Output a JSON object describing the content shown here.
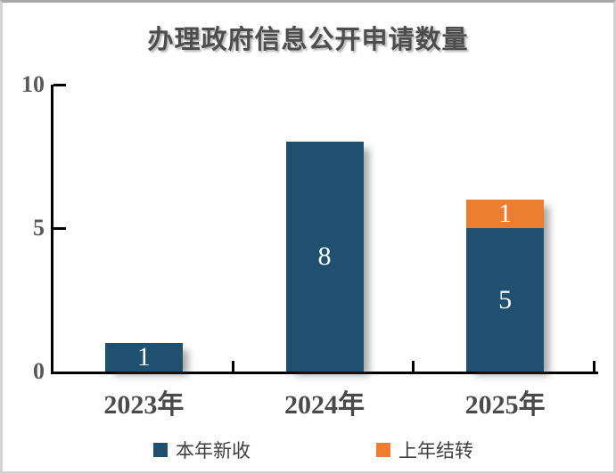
{
  "title": "办理政府信息公开申请数量",
  "colors": {
    "bar_blue": "#20506F",
    "bar_orange": "#ED7D31",
    "axis": "#000000",
    "tick_label": "#595959",
    "title_text": "#4d4d4d"
  },
  "legend": [
    {
      "label": "本年新收",
      "color": "#20506F"
    },
    {
      "label": "上年结转",
      "color": "#ED7D31"
    }
  ],
  "chart_data": {
    "type": "bar",
    "stacked": true,
    "title": "办理政府信息公开申请数量",
    "categories": [
      "2023年",
      "2024年",
      "2025年"
    ],
    "series": [
      {
        "name": "本年新收",
        "color": "#20506F",
        "values": [
          1,
          8,
          5
        ]
      },
      {
        "name": "上年结转",
        "color": "#ED7D31",
        "values": [
          0,
          0,
          1
        ]
      }
    ],
    "ylim": [
      0,
      10
    ],
    "yticks": [
      0,
      5,
      10
    ],
    "grid": false,
    "data_labels": "inside-center-white",
    "legend_position": "bottom"
  }
}
